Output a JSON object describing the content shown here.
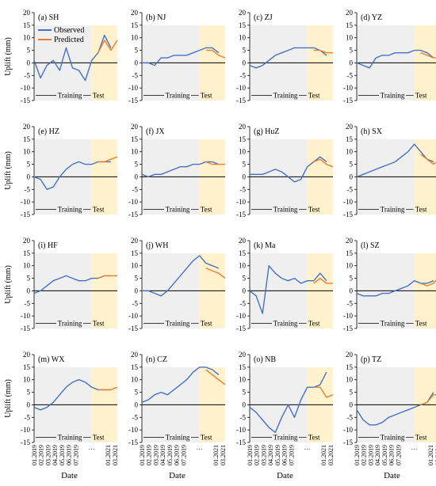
{
  "figure": {
    "ylabel": "Uplift (mm)",
    "xlabel": "Date",
    "legend": {
      "observed": "Observed",
      "predicted": "Predicted"
    },
    "region_labels": {
      "training": "Training",
      "test": "Test"
    },
    "colors": {
      "observed": "#4472c4",
      "predicted": "#ed7d31",
      "training_shade": "#efefef",
      "test_shade": "#fff2cc"
    }
  },
  "chart_data": [
    {
      "type": "line",
      "title": "(a) SH",
      "x": [
        "2019-01",
        "2019-03",
        "2019-05",
        "2019-07",
        "2019-09",
        "2019-11",
        "2020-01",
        "2020-03",
        "2020-05",
        "2020-07",
        "2020-09",
        "2020-11",
        "2021-01",
        "2021-03"
      ],
      "series": [
        {
          "name": "Observed",
          "values": [
            1,
            -6,
            -1,
            1,
            -3,
            6,
            -2,
            -3,
            -7,
            1,
            4,
            11,
            6,
            null
          ]
        },
        {
          "name": "Predicted",
          "values": [
            null,
            null,
            null,
            null,
            null,
            null,
            null,
            null,
            null,
            null,
            4,
            9,
            5,
            9
          ]
        }
      ],
      "ylim": [
        -15,
        20
      ],
      "test_start": "2020-07"
    },
    {
      "type": "line",
      "title": "(b) NJ",
      "x": [
        "2019-01",
        "2019-03",
        "2019-05",
        "2019-07",
        "2019-09",
        "2019-11",
        "2020-01",
        "2020-03",
        "2020-05",
        "2020-07",
        "2020-09",
        "2020-11",
        "2021-01",
        "2021-03"
      ],
      "series": [
        {
          "name": "Observed",
          "values": [
            0,
            0,
            -1,
            2,
            2,
            3,
            3,
            3,
            4,
            5,
            6,
            6,
            4,
            null
          ]
        },
        {
          "name": "Predicted",
          "values": [
            null,
            null,
            null,
            null,
            null,
            null,
            null,
            null,
            null,
            null,
            5,
            5,
            3,
            2
          ]
        }
      ],
      "ylim": [
        -15,
        20
      ],
      "test_start": "2020-07"
    },
    {
      "type": "line",
      "title": "(c) ZJ",
      "x": [
        "2019-01",
        "2019-03",
        "2019-05",
        "2019-07",
        "2019-09",
        "2019-11",
        "2020-01",
        "2020-03",
        "2020-05",
        "2020-07",
        "2020-09",
        "2020-11",
        "2021-01",
        "2021-03"
      ],
      "series": [
        {
          "name": "Observed",
          "values": [
            -1,
            -2,
            -1,
            1,
            3,
            4,
            5,
            6,
            6,
            6,
            6,
            5,
            3,
            null
          ]
        },
        {
          "name": "Predicted",
          "values": [
            null,
            null,
            null,
            null,
            null,
            null,
            null,
            null,
            null,
            null,
            5,
            5,
            4,
            4
          ]
        }
      ],
      "ylim": [
        -15,
        20
      ],
      "test_start": "2020-07"
    },
    {
      "type": "line",
      "title": "(d) YZ",
      "x": [
        "2019-01",
        "2019-03",
        "2019-05",
        "2019-07",
        "2019-09",
        "2019-11",
        "2020-01",
        "2020-03",
        "2020-05",
        "2020-07",
        "2020-09",
        "2020-11",
        "2021-01",
        "2021-03"
      ],
      "series": [
        {
          "name": "Observed",
          "values": [
            0,
            -1,
            -2,
            2,
            3,
            3,
            4,
            4,
            4,
            5,
            5,
            4,
            2,
            null
          ]
        },
        {
          "name": "Predicted",
          "values": [
            null,
            null,
            null,
            null,
            null,
            null,
            null,
            null,
            null,
            null,
            4,
            3,
            2,
            2
          ]
        }
      ],
      "ylim": [
        -15,
        20
      ],
      "test_start": "2020-07"
    },
    {
      "type": "line",
      "title": "(e) HZ",
      "x": [
        "2019-01",
        "2019-03",
        "2019-05",
        "2019-07",
        "2019-09",
        "2019-11",
        "2020-01",
        "2020-03",
        "2020-05",
        "2020-07",
        "2020-09",
        "2020-11",
        "2021-01",
        "2021-03"
      ],
      "series": [
        {
          "name": "Observed",
          "values": [
            0,
            -1,
            -5,
            -4,
            0,
            3,
            5,
            6,
            5,
            5,
            6,
            6,
            6,
            null
          ]
        },
        {
          "name": "Predicted",
          "values": [
            null,
            null,
            null,
            null,
            null,
            null,
            null,
            null,
            null,
            null,
            6,
            6,
            7,
            8
          ]
        }
      ],
      "ylim": [
        -15,
        20
      ],
      "test_start": "2020-07"
    },
    {
      "type": "line",
      "title": "(f) JX",
      "x": [
        "2019-01",
        "2019-03",
        "2019-05",
        "2019-07",
        "2019-09",
        "2019-11",
        "2020-01",
        "2020-03",
        "2020-05",
        "2020-07",
        "2020-09",
        "2020-11",
        "2021-01",
        "2021-03"
      ],
      "series": [
        {
          "name": "Observed",
          "values": [
            1,
            0,
            1,
            1,
            2,
            3,
            4,
            4,
            5,
            5,
            6,
            6,
            5,
            null
          ]
        },
        {
          "name": "Predicted",
          "values": [
            null,
            null,
            null,
            null,
            null,
            null,
            null,
            null,
            null,
            null,
            6,
            5,
            5,
            5
          ]
        }
      ],
      "ylim": [
        -15,
        20
      ],
      "test_start": "2020-07"
    },
    {
      "type": "line",
      "title": "(g) HuZ",
      "x": [
        "2019-01",
        "2019-03",
        "2019-05",
        "2019-07",
        "2019-09",
        "2019-11",
        "2020-01",
        "2020-03",
        "2020-05",
        "2020-07",
        "2020-09",
        "2020-11",
        "2021-01",
        "2021-03"
      ],
      "series": [
        {
          "name": "Observed",
          "values": [
            1,
            1,
            1,
            2,
            3,
            2,
            0,
            -2,
            -1,
            4,
            6,
            8,
            6,
            null
          ]
        },
        {
          "name": "Predicted",
          "values": [
            null,
            null,
            null,
            null,
            null,
            null,
            null,
            null,
            null,
            null,
            6,
            7,
            5,
            4
          ]
        }
      ],
      "ylim": [
        -15,
        20
      ],
      "test_start": "2020-07"
    },
    {
      "type": "line",
      "title": "(h) SX",
      "x": [
        "2019-01",
        "2019-03",
        "2019-05",
        "2019-07",
        "2019-09",
        "2019-11",
        "2020-01",
        "2020-03",
        "2020-05",
        "2020-07",
        "2020-09",
        "2020-11",
        "2021-01",
        "2021-03"
      ],
      "series": [
        {
          "name": "Observed",
          "values": [
            0,
            1,
            2,
            3,
            4,
            5,
            6,
            8,
            10,
            13,
            10,
            7,
            6,
            null
          ]
        },
        {
          "name": "Predicted",
          "values": [
            null,
            null,
            null,
            null,
            null,
            null,
            null,
            null,
            null,
            null,
            9,
            7,
            5,
            7
          ]
        }
      ],
      "ylim": [
        -15,
        20
      ],
      "test_start": "2020-07"
    },
    {
      "type": "line",
      "title": "(i) HF",
      "x": [
        "2019-01",
        "2019-03",
        "2019-05",
        "2019-07",
        "2019-09",
        "2019-11",
        "2020-01",
        "2020-03",
        "2020-05",
        "2020-07",
        "2020-09",
        "2020-11",
        "2021-01",
        "2021-03"
      ],
      "series": [
        {
          "name": "Observed",
          "values": [
            -1,
            0,
            2,
            4,
            5,
            6,
            5,
            4,
            4,
            5,
            5,
            6,
            6,
            null
          ]
        },
        {
          "name": "Predicted",
          "values": [
            null,
            null,
            null,
            null,
            null,
            null,
            null,
            null,
            null,
            null,
            5,
            6,
            6,
            6
          ]
        }
      ],
      "ylim": [
        -15,
        20
      ],
      "test_start": "2020-07"
    },
    {
      "type": "line",
      "title": "(j) WH",
      "x": [
        "2019-01",
        "2019-03",
        "2019-05",
        "2019-07",
        "2019-09",
        "2019-11",
        "2020-01",
        "2020-03",
        "2020-05",
        "2020-07",
        "2020-09",
        "2020-11",
        "2021-01",
        "2021-03"
      ],
      "series": [
        {
          "name": "Observed",
          "values": [
            0,
            0,
            -1,
            -2,
            0,
            3,
            6,
            9,
            12,
            14,
            11,
            10,
            9,
            null
          ]
        },
        {
          "name": "Predicted",
          "values": [
            null,
            null,
            null,
            null,
            null,
            null,
            null,
            null,
            null,
            null,
            9,
            8,
            7,
            5
          ]
        }
      ],
      "ylim": [
        -15,
        20
      ],
      "test_start": "2020-07"
    },
    {
      "type": "line",
      "title": "(k) Ma",
      "x": [
        "2019-01",
        "2019-03",
        "2019-05",
        "2019-07",
        "2019-09",
        "2019-11",
        "2020-01",
        "2020-03",
        "2020-05",
        "2020-07",
        "2020-09",
        "2020-11",
        "2021-01",
        "2021-03"
      ],
      "series": [
        {
          "name": "Observed",
          "values": [
            0,
            -2,
            -9,
            10,
            7,
            5,
            4,
            5,
            3,
            4,
            4,
            7,
            4,
            null
          ]
        },
        {
          "name": "Predicted",
          "values": [
            null,
            null,
            null,
            null,
            null,
            null,
            null,
            null,
            null,
            null,
            3,
            5,
            3,
            3
          ]
        }
      ],
      "ylim": [
        -15,
        20
      ],
      "test_start": "2020-07"
    },
    {
      "type": "line",
      "title": "(l) SZ",
      "x": [
        "2019-01",
        "2019-03",
        "2019-05",
        "2019-07",
        "2019-09",
        "2019-11",
        "2020-01",
        "2020-03",
        "2020-05",
        "2020-07",
        "2020-09",
        "2020-11",
        "2021-01",
        "2021-03"
      ],
      "series": [
        {
          "name": "Observed",
          "values": [
            -1,
            -2,
            -2,
            -2,
            -1,
            -1,
            0,
            1,
            2,
            4,
            3,
            3,
            4,
            null
          ]
        },
        {
          "name": "Predicted",
          "values": [
            null,
            null,
            null,
            null,
            null,
            null,
            null,
            null,
            null,
            null,
            3,
            2,
            3,
            6
          ]
        }
      ],
      "ylim": [
        -15,
        20
      ],
      "test_start": "2020-07"
    },
    {
      "type": "line",
      "title": "(m) WX",
      "x": [
        "2019-01",
        "2019-03",
        "2019-05",
        "2019-07",
        "2019-09",
        "2019-11",
        "2020-01",
        "2020-03",
        "2020-05",
        "2020-07",
        "2020-09",
        "2020-11",
        "2021-01",
        "2021-03"
      ],
      "series": [
        {
          "name": "Observed",
          "values": [
            -1,
            -2,
            -1,
            1,
            4,
            7,
            9,
            10,
            9,
            7,
            6,
            6,
            6,
            null
          ]
        },
        {
          "name": "Predicted",
          "values": [
            null,
            null,
            null,
            null,
            null,
            null,
            null,
            null,
            null,
            null,
            6,
            6,
            6,
            7
          ]
        }
      ],
      "ylim": [
        -15,
        20
      ],
      "test_start": "2020-07"
    },
    {
      "type": "line",
      "title": "(n) CZ",
      "x": [
        "2019-01",
        "2019-03",
        "2019-05",
        "2019-07",
        "2019-09",
        "2019-11",
        "2020-01",
        "2020-03",
        "2020-05",
        "2020-07",
        "2020-09",
        "2020-11",
        "2021-01",
        "2021-03"
      ],
      "series": [
        {
          "name": "Observed",
          "values": [
            1,
            2,
            4,
            5,
            4,
            6,
            8,
            10,
            13,
            15,
            15,
            14,
            12,
            null
          ]
        },
        {
          "name": "Predicted",
          "values": [
            null,
            null,
            null,
            null,
            null,
            null,
            null,
            null,
            null,
            null,
            14,
            12,
            10,
            8
          ]
        }
      ],
      "ylim": [
        -15,
        20
      ],
      "test_start": "2020-07"
    },
    {
      "type": "line",
      "title": "(o) NB",
      "x": [
        "2019-01",
        "2019-03",
        "2019-05",
        "2019-07",
        "2019-09",
        "2019-11",
        "2020-01",
        "2020-03",
        "2020-05",
        "2020-07",
        "2020-09",
        "2020-11",
        "2021-01",
        "2021-03"
      ],
      "series": [
        {
          "name": "Observed",
          "values": [
            -1,
            -3,
            -6,
            -9,
            -11,
            -5,
            0,
            -5,
            2,
            7,
            7,
            8,
            13,
            null
          ]
        },
        {
          "name": "Predicted",
          "values": [
            null,
            null,
            null,
            null,
            null,
            null,
            null,
            null,
            null,
            null,
            7,
            7,
            3,
            4
          ]
        }
      ],
      "ylim": [
        -15,
        20
      ],
      "test_start": "2020-07"
    },
    {
      "type": "line",
      "title": "(p) TZ",
      "x": [
        "2019-01",
        "2019-03",
        "2019-05",
        "2019-07",
        "2019-09",
        "2019-11",
        "2020-01",
        "2020-03",
        "2020-05",
        "2020-07",
        "2020-09",
        "2020-11",
        "2021-01",
        "2021-03"
      ],
      "series": [
        {
          "name": "Observed",
          "values": [
            -2,
            -6,
            -8,
            -8,
            -7,
            -5,
            -4,
            -3,
            -2,
            -1,
            0,
            1,
            5,
            null
          ]
        },
        {
          "name": "Predicted",
          "values": [
            null,
            null,
            null,
            null,
            null,
            null,
            null,
            null,
            null,
            null,
            0,
            1,
            4,
            4
          ]
        }
      ],
      "ylim": [
        -15,
        20
      ],
      "test_start": "2020-07"
    }
  ],
  "xticks": [
    "01.2019",
    "02.2019",
    "03.2019",
    "04.2019",
    "05.2019",
    "06.2019",
    "07.2019",
    "01.2021",
    "03.2021"
  ],
  "yticks": [
    -15,
    -10,
    -5,
    0,
    5,
    10,
    15,
    20
  ]
}
